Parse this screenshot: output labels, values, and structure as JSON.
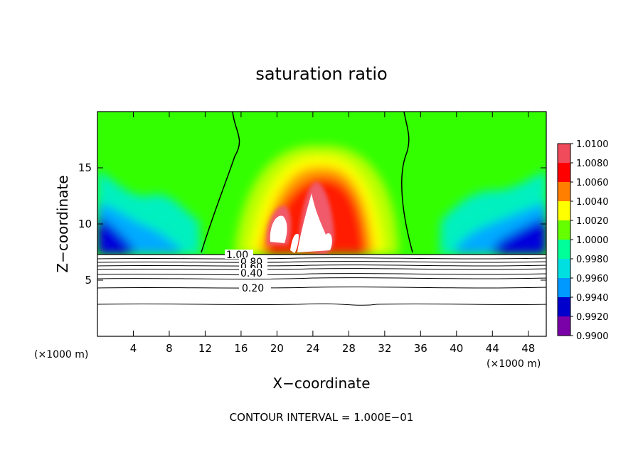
{
  "chart_data": {
    "type": "heatmap",
    "title": "saturation ratio",
    "xlabel": "X−coordinate",
    "ylabel": "Z−coordinate",
    "x_unit": "(×1000 m)",
    "xlim": [
      0,
      50
    ],
    "ylim": [
      0,
      20
    ],
    "x_ticks": [
      4,
      8,
      12,
      16,
      20,
      24,
      28,
      32,
      36,
      40,
      44,
      48
    ],
    "y_ticks": [
      5,
      10,
      15
    ],
    "colorbar": {
      "min": 0.99,
      "max": 1.01,
      "labels": [
        "1.0100",
        "1.0080",
        "1.0060",
        "1.0040",
        "1.0020",
        "1.0000",
        "0.9980",
        "0.9960",
        "0.9940",
        "0.9920",
        "0.9900"
      ],
      "colors": [
        "#f04b5a",
        "#ff0000",
        "#ff7f00",
        "#ffff00",
        "#66ff00",
        "#00ff99",
        "#00e0e0",
        "#0099ff",
        "#0000cc",
        "#7a00a8"
      ]
    },
    "contour_lines": [
      {
        "level": 1.0,
        "label": "1.00"
      },
      {
        "level": 0.8,
        "label": "0.80"
      },
      {
        "level": 0.6,
        "label": "0.60"
      },
      {
        "level": 0.4,
        "label": "0.40"
      },
      {
        "level": 0.2,
        "label": "0.20"
      }
    ],
    "footer": "CONTOUR INTERVAL = 1.000E−01"
  }
}
